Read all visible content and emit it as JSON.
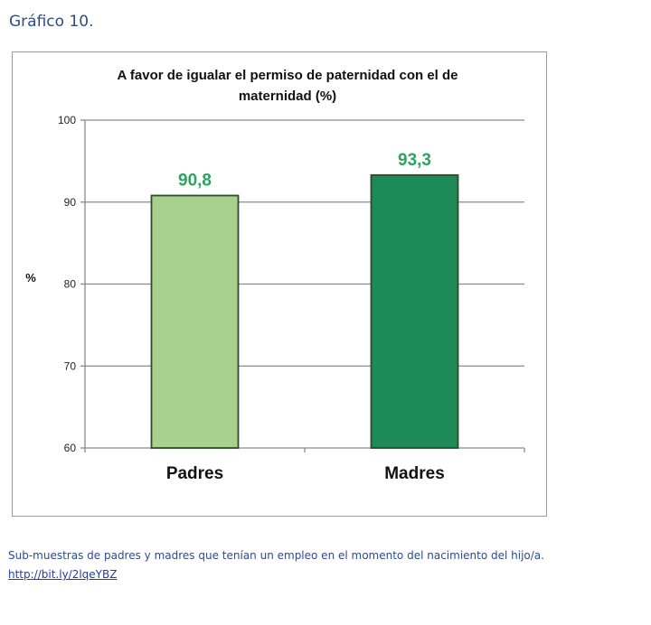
{
  "figure_label": "Gráfico 10.",
  "caption": "Sub-muestras de padres y madres que tenían un empleo en el momento del nacimiento del hijo/a.",
  "source_link": "http://bit.ly/2lqeYBZ",
  "chart_data": {
    "type": "bar",
    "title_line1": "A favor de igualar el permiso de paternidad con el de",
    "title_line2": "maternidad (%)",
    "xlabel": "",
    "ylabel": "%",
    "categories": [
      "Padres",
      "Madres"
    ],
    "values": [
      90.8,
      93.3
    ],
    "value_labels": [
      "90,8",
      "93,3"
    ],
    "bar_colors": [
      "#a9d18e",
      "#1e8a57"
    ],
    "bar_border_color": "#2f4a2f",
    "value_label_color": "#2ea360",
    "ylim": [
      60,
      100
    ],
    "yticks": [
      60,
      70,
      80,
      90,
      100
    ],
    "grid": true,
    "legend": "none"
  }
}
